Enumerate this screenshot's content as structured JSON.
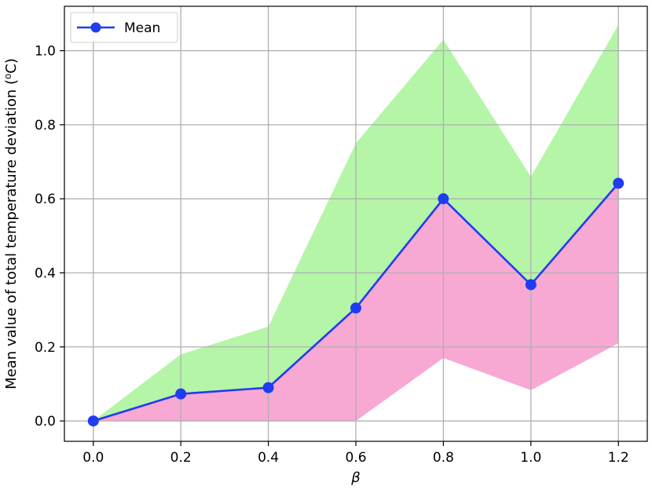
{
  "chart_data": {
    "type": "line",
    "title": "",
    "xlabel": "β",
    "ylabel": "Mean value of total temperature deviation (⁰C)",
    "x": [
      0.0,
      0.2,
      0.4,
      0.6,
      0.8,
      1.0,
      1.2
    ],
    "xticks": [
      "0.0",
      "0.2",
      "0.4",
      "0.6",
      "0.8",
      "1.0",
      "1.2"
    ],
    "yticks": [
      "0.0",
      "0.2",
      "0.4",
      "0.6",
      "0.8",
      "1.0"
    ],
    "xlim": [
      -0.066,
      1.266
    ],
    "ylim": [
      -0.055,
      1.12
    ],
    "grid": true,
    "legend_position": "top-left",
    "series": [
      {
        "name": "Mean",
        "values": [
          0.0,
          0.073,
          0.09,
          0.305,
          0.6,
          0.368,
          0.642
        ],
        "color": "#1f3cf0",
        "marker": "circle"
      }
    ],
    "bands": [
      {
        "role": "upper",
        "lower": [
          0.0,
          0.073,
          0.09,
          0.305,
          0.6,
          0.368,
          0.642
        ],
        "upper": [
          0.0,
          0.18,
          0.255,
          0.75,
          1.03,
          0.66,
          1.07
        ],
        "color": "#b5f5a8"
      },
      {
        "role": "lower",
        "lower": [
          0.0,
          0.0,
          0.0,
          0.0,
          0.17,
          0.083,
          0.21
        ],
        "upper": [
          0.0,
          0.073,
          0.09,
          0.305,
          0.6,
          0.368,
          0.642
        ],
        "color": "#f7a8d3"
      }
    ]
  }
}
